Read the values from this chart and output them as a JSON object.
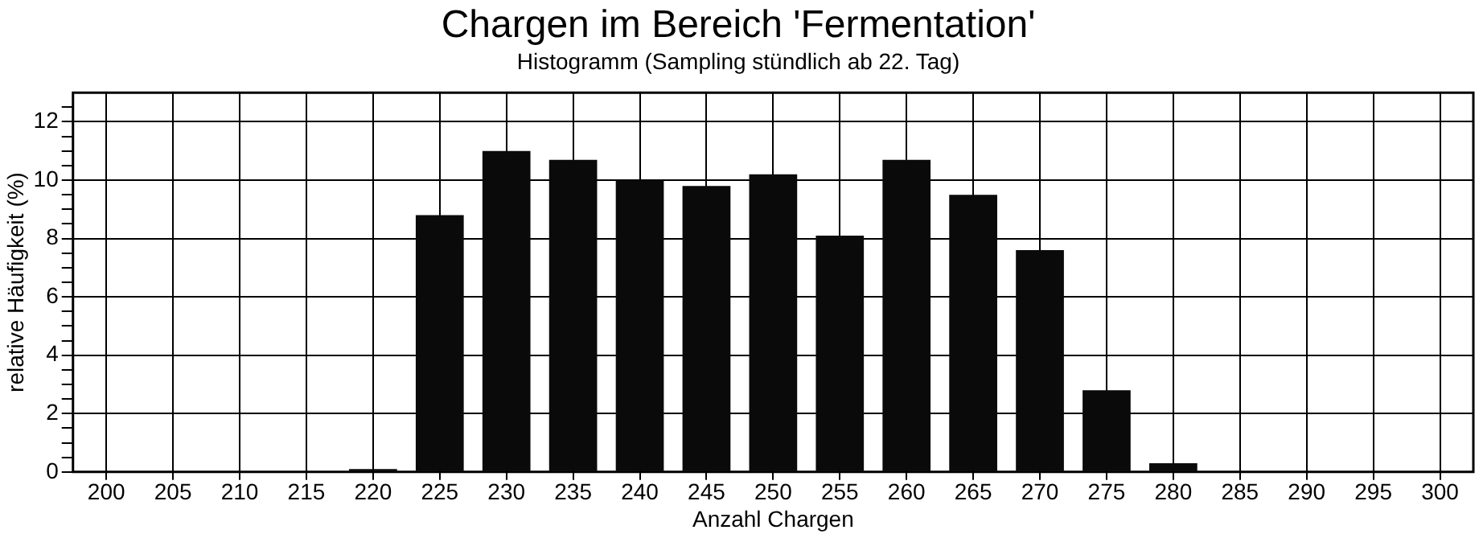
{
  "chart_data": {
    "type": "bar",
    "title": "Chargen im Bereich 'Fermentation'",
    "subtitle": "Histogramm (Sampling stündlich ab 22. Tag)",
    "xlabel": "Anzahl Chargen",
    "ylabel": "relative Häufigkeit (%)",
    "categories": [
      "200",
      "205",
      "210",
      "215",
      "220",
      "225",
      "230",
      "235",
      "240",
      "245",
      "250",
      "255",
      "260",
      "265",
      "270",
      "275",
      "280",
      "285",
      "290",
      "295",
      "300"
    ],
    "values": [
      0,
      0,
      0,
      0,
      0.1,
      8.8,
      11.0,
      10.7,
      10.0,
      9.8,
      10.2,
      8.1,
      10.7,
      9.5,
      7.6,
      2.8,
      0.3,
      0,
      0,
      0,
      0
    ],
    "color": "#0a0a0a",
    "ylim": [
      0,
      13
    ],
    "yticks": [
      0,
      {
        "value": 0.5,
        "label": null
      },
      {
        "value": 1,
        "label": null
      },
      {
        "value": 1.5,
        "label": null
      },
      2,
      {
        "value": 2.5,
        "label": null
      },
      {
        "value": 3,
        "label": null
      },
      {
        "value": 3.5,
        "label": null
      },
      4,
      {
        "value": 4.5,
        "label": null
      },
      {
        "value": 5,
        "label": null
      },
      {
        "value": 5.5,
        "label": null
      },
      6,
      {
        "value": 6.5,
        "label": null
      },
      {
        "value": 7,
        "label": null
      },
      {
        "value": 7.5,
        "label": null
      },
      8,
      {
        "value": 8.5,
        "label": null
      },
      {
        "value": 9,
        "label": null
      },
      {
        "value": 9.5,
        "label": null
      },
      10,
      {
        "value": 10.5,
        "label": null
      },
      {
        "value": 11,
        "label": null
      },
      {
        "value": 11.5,
        "label": null
      },
      12,
      {
        "value": 12.5,
        "label": null
      }
    ],
    "grid": true,
    "legend": false
  }
}
